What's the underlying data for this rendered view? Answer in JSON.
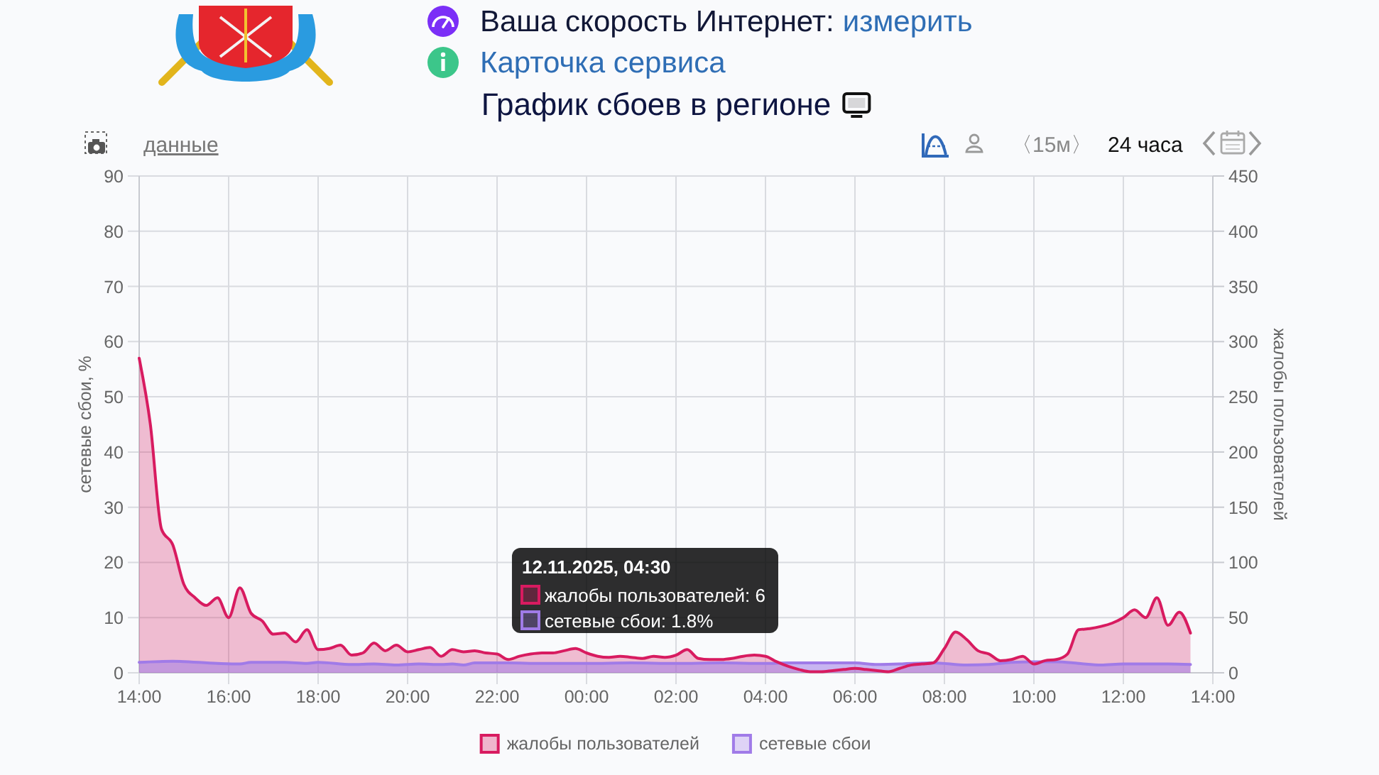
{
  "chart_data": {
    "type": "area",
    "title": "График сбоев в регионе",
    "ylabel": "сетевые сбои, %",
    "y2label": "жалобы пользователей",
    "annotations": [
      "Ваша скорость Интернет:",
      "измерить",
      "Карточка сервиса",
      "данные",
      "〈15м〉",
      "24 часа",
      "12.11.2025, 04:30",
      "жалобы пользователей: 6",
      "сетевые сбои: 1.8%"
    ],
    "xlim": [
      "2025-11-11T14:00",
      "2025-11-12T14:00"
    ],
    "xticks": [
      {
        "value": "2025-11-11T14:00",
        "label": "14:00"
      },
      {
        "value": "2025-11-11T16:00",
        "label": "16:00"
      },
      {
        "value": "2025-11-11T18:00",
        "label": "18:00"
      },
      {
        "value": "2025-11-11T20:00",
        "label": "20:00"
      },
      {
        "value": "2025-11-11T22:00",
        "label": "22:00"
      },
      {
        "value": "2025-11-12T00:00",
        "label": "00:00"
      },
      {
        "value": "2025-11-12T02:00",
        "label": "02:00"
      },
      {
        "value": "2025-11-12T04:00",
        "label": "04:00"
      },
      {
        "value": "2025-11-12T06:00",
        "label": "06:00"
      },
      {
        "value": "2025-11-12T08:00",
        "label": "08:00"
      },
      {
        "value": "2025-11-12T10:00",
        "label": "10:00"
      },
      {
        "value": "2025-11-12T12:00",
        "label": "12:00"
      },
      {
        "value": "2025-11-12T14:00",
        "label": "14:00"
      }
    ],
    "ylim": [
      0,
      90
    ],
    "yticks": [
      0,
      10,
      20,
      30,
      40,
      50,
      60,
      70,
      80,
      90
    ],
    "y2lim": [
      0,
      450
    ],
    "y2ticks": [
      0,
      50,
      100,
      150,
      200,
      250,
      300,
      350,
      400,
      450
    ],
    "grid": true,
    "legend": "bottom",
    "series": [
      {
        "name": "жалобы пользователей",
        "color": "#d81b60",
        "axis": "y2",
        "x": [
          "2025-11-11T14:00",
          "2025-11-11T14:15",
          "2025-11-11T14:30",
          "2025-11-11T14:45",
          "2025-11-11T15:00",
          "2025-11-11T15:15",
          "2025-11-11T15:30",
          "2025-11-11T15:45",
          "2025-11-11T16:00",
          "2025-11-11T16:15",
          "2025-11-11T16:30",
          "2025-11-11T16:45",
          "2025-11-11T17:00",
          "2025-11-11T17:15",
          "2025-11-11T17:30",
          "2025-11-11T17:45",
          "2025-11-11T18:00",
          "2025-11-11T18:15",
          "2025-11-11T18:30",
          "2025-11-11T18:45",
          "2025-11-11T19:00",
          "2025-11-11T19:15",
          "2025-11-11T19:30",
          "2025-11-11T19:45",
          "2025-11-11T20:00",
          "2025-11-11T20:15",
          "2025-11-11T20:30",
          "2025-11-11T20:45",
          "2025-11-11T21:00",
          "2025-11-11T21:15",
          "2025-11-11T21:30",
          "2025-11-11T21:45",
          "2025-11-11T22:00",
          "2025-11-11T22:15",
          "2025-11-11T22:30",
          "2025-11-11T22:45",
          "2025-11-11T23:00",
          "2025-11-11T23:15",
          "2025-11-11T23:30",
          "2025-11-11T23:45",
          "2025-11-12T00:00",
          "2025-11-12T00:15",
          "2025-11-12T00:30",
          "2025-11-12T00:45",
          "2025-11-12T01:00",
          "2025-11-12T01:15",
          "2025-11-12T01:30",
          "2025-11-12T01:45",
          "2025-11-12T02:00",
          "2025-11-12T02:15",
          "2025-11-12T02:30",
          "2025-11-12T02:45",
          "2025-11-12T03:00",
          "2025-11-12T03:15",
          "2025-11-12T03:30",
          "2025-11-12T03:45",
          "2025-11-12T04:00",
          "2025-11-12T04:15",
          "2025-11-12T04:30",
          "2025-11-12T04:45",
          "2025-11-12T05:00",
          "2025-11-12T05:15",
          "2025-11-12T05:30",
          "2025-11-12T05:45",
          "2025-11-12T06:00",
          "2025-11-12T06:15",
          "2025-11-12T06:30",
          "2025-11-12T06:45",
          "2025-11-12T07:00",
          "2025-11-12T07:15",
          "2025-11-12T07:30",
          "2025-11-12T07:45",
          "2025-11-12T08:00",
          "2025-11-12T08:15",
          "2025-11-12T08:30",
          "2025-11-12T08:45",
          "2025-11-12T09:00",
          "2025-11-12T09:15",
          "2025-11-12T09:30",
          "2025-11-12T09:45",
          "2025-11-12T10:00",
          "2025-11-12T10:15",
          "2025-11-12T10:30",
          "2025-11-12T10:45",
          "2025-11-12T11:00",
          "2025-11-12T11:15",
          "2025-11-12T11:30",
          "2025-11-12T11:45",
          "2025-11-12T12:00",
          "2025-11-12T12:15",
          "2025-11-12T12:30",
          "2025-11-12T12:45",
          "2025-11-12T13:00",
          "2025-11-12T13:15",
          "2025-11-12T13:30"
        ],
        "values": [
          285,
          225,
          130,
          116,
          80,
          68,
          61,
          68,
          50,
          77,
          54,
          47,
          35,
          36,
          28,
          39,
          21,
          22,
          25,
          16,
          18,
          27,
          20,
          25,
          19,
          21,
          23,
          15,
          21,
          19,
          20,
          18,
          17,
          12,
          15,
          17,
          18,
          18,
          20,
          22,
          18,
          15,
          14,
          15,
          14,
          13,
          15,
          14,
          16,
          21,
          13,
          12,
          12,
          13,
          15,
          16,
          15,
          10,
          6,
          3,
          1,
          1,
          2,
          3,
          4,
          3,
          2,
          1,
          4,
          7,
          8,
          9,
          22,
          37,
          30,
          20,
          17,
          11,
          12,
          15,
          8,
          11,
          12,
          17,
          39,
          40,
          42,
          45,
          50,
          57,
          50,
          68,
          43,
          55,
          36
        ]
      },
      {
        "name": "сетевые сбои",
        "color": "#a07be8",
        "axis": "y",
        "x": [
          "2025-11-11T14:00",
          "2025-11-11T14:45",
          "2025-11-11T15:45",
          "2025-11-11T16:15",
          "2025-11-11T16:30",
          "2025-11-11T17:15",
          "2025-11-11T17:45",
          "2025-11-11T18:00",
          "2025-11-11T18:45",
          "2025-11-11T19:15",
          "2025-11-11T19:45",
          "2025-11-11T20:15",
          "2025-11-11T20:45",
          "2025-11-11T21:00",
          "2025-11-11T21:15",
          "2025-11-11T21:30",
          "2025-11-11T22:15",
          "2025-11-11T23:00",
          "2025-11-12T00:00",
          "2025-11-12T01:00",
          "2025-11-12T02:00",
          "2025-11-12T03:00",
          "2025-11-12T04:00",
          "2025-11-12T04:30",
          "2025-11-12T05:00",
          "2025-11-12T06:00",
          "2025-11-12T06:30",
          "2025-11-12T07:00",
          "2025-11-12T07:45",
          "2025-11-12T08:30",
          "2025-11-12T09:00",
          "2025-11-12T09:30",
          "2025-11-12T10:00",
          "2025-11-12T10:30",
          "2025-11-12T11:00",
          "2025-11-12T11:30",
          "2025-11-12T12:00",
          "2025-11-12T12:30",
          "2025-11-12T13:00",
          "2025-11-12T13:30"
        ],
        "values": [
          1.9,
          2.1,
          1.7,
          1.6,
          1.9,
          1.9,
          1.7,
          1.9,
          1.5,
          1.6,
          1.4,
          1.6,
          1.5,
          1.6,
          1.4,
          1.8,
          1.8,
          1.7,
          1.7,
          1.8,
          1.7,
          1.8,
          1.7,
          1.8,
          1.8,
          1.8,
          1.5,
          1.6,
          1.8,
          1.4,
          1.5,
          1.9,
          2.0,
          2.0,
          1.7,
          1.4,
          1.6,
          1.6,
          1.6,
          1.5
        ]
      }
    ]
  }
}
